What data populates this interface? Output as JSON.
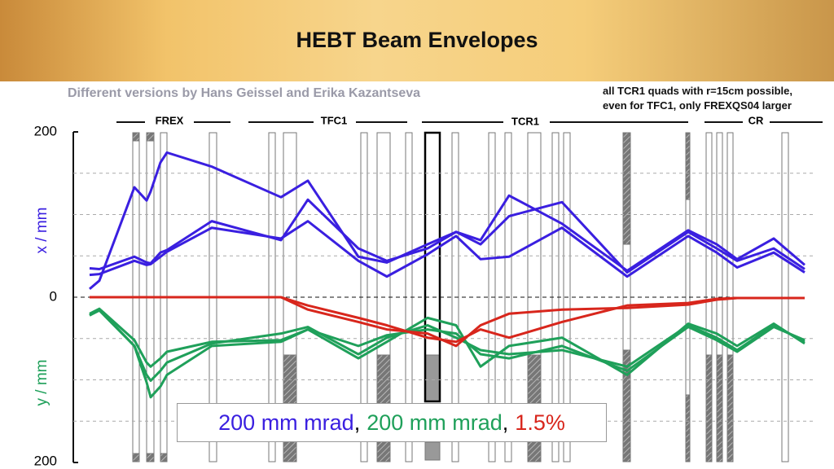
{
  "header": {
    "title": "HEBT Beam Envelopes",
    "subtitle": "Different versions by Hans Geissel and Erika Kazantseva",
    "note": [
      "all TCR1 quads with r=15cm possible,",
      "even for TFC1, only FREXQS04 larger"
    ]
  },
  "sections": [
    "FREX",
    "TFC1",
    "TCR1",
    "CR"
  ],
  "chart_data": {
    "type": "line",
    "ylabel_top": "x / mm",
    "ylabel_bottom": "y / mm",
    "x": [
      20,
      32,
      75,
      90,
      95,
      107,
      115,
      170,
      255,
      288,
      350,
      385,
      435,
      470,
      500,
      535,
      600,
      680,
      755,
      790,
      815,
      860,
      898
    ],
    "xlim": [
      0,
      910
    ],
    "ylim": [
      -200,
      200
    ],
    "yticks": [
      {
        "value": -200,
        "label": "200"
      },
      0,
      200
    ],
    "gridlines": [
      -150,
      -100,
      -50,
      50,
      100,
      150
    ],
    "legend_separator": ",",
    "series": [
      {
        "name": "200 mm mrad",
        "color": "#3a1fe0",
        "values": [
          10,
          20,
          133,
          117,
          128,
          163,
          175,
          158,
          121,
          141,
          49,
          42,
          64,
          79,
          69,
          123,
          89,
          32,
          81,
          64,
          46,
          71,
          39
        ]
      },
      {
        "color": "#3a1fe0",
        "values": [
          35,
          34,
          49,
          42,
          41,
          54,
          57,
          92,
          69,
          118,
          59,
          44,
          59,
          79,
          64,
          98,
          115,
          30,
          79,
          59,
          44,
          59,
          34
        ]
      },
      {
        "color": "#3a1fe0",
        "values": [
          27,
          28,
          44,
          39,
          40,
          49,
          55,
          84,
          71,
          92,
          44,
          25,
          52,
          74,
          46,
          49,
          84,
          25,
          74,
          54,
          36,
          54,
          30
        ]
      },
      {
        "name": "200 mm mrad",
        "color": "#1fa05a",
        "values": [
          -22,
          -16,
          -59,
          -103,
          -121,
          -108,
          -94,
          -59,
          -54,
          -39,
          -74,
          -54,
          -25,
          -34,
          -84,
          -59,
          -49,
          -94,
          -32,
          -44,
          -59,
          -32,
          -56
        ]
      },
      {
        "color": "#1fa05a",
        "values": [
          -22,
          -15,
          -59,
          -94,
          -101,
          -89,
          -79,
          -56,
          -44,
          -36,
          -69,
          -49,
          -34,
          -49,
          -64,
          -69,
          -64,
          -84,
          -34,
          -49,
          -64,
          -34,
          -54
        ]
      },
      {
        "color": "#1fa05a",
        "values": [
          -20,
          -14,
          -52,
          -79,
          -84,
          -74,
          -66,
          -54,
          -52,
          -39,
          -59,
          -46,
          -39,
          -44,
          -69,
          -74,
          -59,
          -89,
          -36,
          -52,
          -66,
          -36,
          -52
        ]
      },
      {
        "name": "1.5%",
        "color": "#d8261c",
        "values": [
          0,
          0,
          0,
          0,
          0,
          0,
          0,
          0,
          0,
          -10,
          -25,
          -34,
          -49,
          -54,
          -39,
          -49,
          -30,
          -10,
          -7,
          -2,
          -1,
          -1,
          -1
        ]
      },
      {
        "color": "#d8261c",
        "values": [
          0,
          0,
          0,
          0,
          0,
          0,
          0,
          0,
          0,
          -15,
          -30,
          -39,
          -44,
          -59,
          -34,
          -20,
          -15,
          -13,
          -9,
          -3,
          -1,
          -1,
          -1
        ]
      }
    ]
  }
}
